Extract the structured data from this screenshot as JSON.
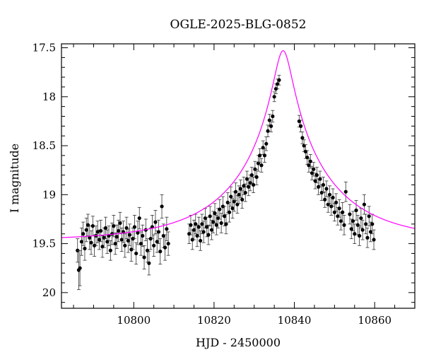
{
  "chart_data": {
    "type": "scatter",
    "title": "OGLE-2025-BLG-0852",
    "xlabel": "HJD - 2450000",
    "ylabel": "I magnitude",
    "xlim": [
      10782,
      10870
    ],
    "ylim": [
      20.16,
      17.46
    ],
    "y_inverted": true,
    "x_ticks": [
      10800,
      10820,
      10840,
      10860
    ],
    "x_tick_labels": [
      "10800",
      "10820",
      "10840",
      "10860"
    ],
    "y_ticks": [
      17.5,
      18,
      18.5,
      19,
      19.5,
      20
    ],
    "y_tick_labels": [
      "17.5",
      "18",
      "18.5",
      "19",
      "19.5",
      "20"
    ],
    "model": {
      "color": "#ff00ff",
      "shape": "paczynski",
      "t0": 10837.2,
      "tE": 24,
      "u0": 0.09,
      "baseline_mag": 19.47,
      "peak_mag": 17.53
    },
    "series": [
      {
        "marker": "filled-circle",
        "color": "#000000",
        "points": [
          [
            10786.0,
            19.57,
            0.12
          ],
          [
            10786.3,
            19.77,
            0.2
          ],
          [
            10786.6,
            19.75,
            0.18
          ],
          [
            10787.0,
            19.48,
            0.14
          ],
          [
            10787.4,
            19.4,
            0.12
          ],
          [
            10787.8,
            19.55,
            0.12
          ],
          [
            10788.2,
            19.36,
            0.12
          ],
          [
            10788.6,
            19.31,
            0.11
          ],
          [
            10789.0,
            19.44,
            0.12
          ],
          [
            10789.4,
            19.49,
            0.12
          ],
          [
            10789.8,
            19.32,
            0.1
          ],
          [
            10790.2,
            19.52,
            0.11
          ],
          [
            10790.6,
            19.42,
            0.1
          ],
          [
            10791.0,
            19.38,
            0.11
          ],
          [
            10791.4,
            19.46,
            0.1
          ],
          [
            10791.8,
            19.37,
            0.11
          ],
          [
            10792.2,
            19.53,
            0.11
          ],
          [
            10792.6,
            19.44,
            0.1
          ],
          [
            10793.0,
            19.34,
            0.11
          ],
          [
            10793.4,
            19.48,
            0.12
          ],
          [
            10793.8,
            19.42,
            0.1
          ],
          [
            10794.2,
            19.57,
            0.1
          ],
          [
            10794.6,
            19.4,
            0.11
          ],
          [
            10795.0,
            19.32,
            0.11
          ],
          [
            10795.4,
            19.5,
            0.11
          ],
          [
            10795.8,
            19.43,
            0.12
          ],
          [
            10796.2,
            19.37,
            0.11
          ],
          [
            10796.6,
            19.29,
            0.11
          ],
          [
            10797.0,
            19.46,
            0.12
          ],
          [
            10797.4,
            19.38,
            0.11
          ],
          [
            10797.8,
            19.52,
            0.12
          ],
          [
            10798.2,
            19.34,
            0.11
          ],
          [
            10798.6,
            19.47,
            0.12
          ],
          [
            10799.0,
            19.41,
            0.11
          ],
          [
            10799.4,
            19.56,
            0.12
          ],
          [
            10799.8,
            19.45,
            0.11
          ],
          [
            10800.2,
            19.33,
            0.12
          ],
          [
            10800.6,
            19.6,
            0.11
          ],
          [
            10801.0,
            19.39,
            0.12
          ],
          [
            10801.4,
            19.24,
            0.11
          ],
          [
            10801.8,
            19.5,
            0.12
          ],
          [
            10802.2,
            19.42,
            0.11
          ],
          [
            10802.6,
            19.64,
            0.12
          ],
          [
            10803.0,
            19.36,
            0.11
          ],
          [
            10803.4,
            19.57,
            0.12
          ],
          [
            10803.8,
            19.7,
            0.12
          ],
          [
            10804.2,
            19.45,
            0.11
          ],
          [
            10804.6,
            19.33,
            0.12
          ],
          [
            10805.0,
            19.52,
            0.11
          ],
          [
            10805.4,
            19.28,
            0.12
          ],
          [
            10805.8,
            19.48,
            0.11
          ],
          [
            10806.2,
            19.38,
            0.12
          ],
          [
            10806.6,
            19.58,
            0.13
          ],
          [
            10807.0,
            19.12,
            0.12
          ],
          [
            10807.4,
            19.42,
            0.12
          ],
          [
            10807.8,
            19.54,
            0.13
          ],
          [
            10808.2,
            19.35,
            0.12
          ],
          [
            10808.6,
            19.5,
            0.12
          ],
          [
            10813.8,
            19.4,
            0.1
          ],
          [
            10814.2,
            19.31,
            0.1
          ],
          [
            10814.6,
            19.46,
            0.1
          ],
          [
            10815.0,
            19.36,
            0.1
          ],
          [
            10815.4,
            19.3,
            0.1
          ],
          [
            10815.8,
            19.42,
            0.11
          ],
          [
            10816.2,
            19.33,
            0.1
          ],
          [
            10816.6,
            19.47,
            0.1
          ],
          [
            10817.0,
            19.3,
            0.1
          ],
          [
            10817.4,
            19.38,
            0.11
          ],
          [
            10817.8,
            19.24,
            0.1
          ],
          [
            10818.2,
            19.33,
            0.1
          ],
          [
            10818.6,
            19.41,
            0.1
          ],
          [
            10819.0,
            19.22,
            0.1
          ],
          [
            10819.4,
            19.36,
            0.1
          ],
          [
            10819.8,
            19.28,
            0.11
          ],
          [
            10820.2,
            19.19,
            0.1
          ],
          [
            10820.6,
            19.31,
            0.1
          ],
          [
            10821.0,
            19.24,
            0.1
          ],
          [
            10821.4,
            19.15,
            0.1
          ],
          [
            10821.8,
            19.29,
            0.1
          ],
          [
            10822.2,
            19.12,
            0.1
          ],
          [
            10822.6,
            19.22,
            0.1
          ],
          [
            10823.0,
            19.3,
            0.1
          ],
          [
            10823.4,
            19.08,
            0.1
          ],
          [
            10823.8,
            19.18,
            0.1
          ],
          [
            10824.2,
            19.02,
            0.1
          ],
          [
            10824.6,
            19.14,
            0.1
          ],
          [
            10825.0,
            19.07,
            0.1
          ],
          [
            10825.4,
            18.97,
            0.09
          ],
          [
            10825.8,
            19.1,
            0.09
          ],
          [
            10826.2,
            19.0,
            0.09
          ],
          [
            10826.6,
            18.94,
            0.09
          ],
          [
            10827.0,
            19.05,
            0.09
          ],
          [
            10827.4,
            18.91,
            0.09
          ],
          [
            10827.8,
            18.98,
            0.09
          ],
          [
            10828.2,
            18.84,
            0.08
          ],
          [
            10828.6,
            18.92,
            0.09
          ],
          [
            10829.0,
            18.88,
            0.08
          ],
          [
            10829.4,
            18.8,
            0.08
          ],
          [
            10829.8,
            18.9,
            0.08
          ],
          [
            10830.2,
            18.74,
            0.08
          ],
          [
            10830.6,
            18.82,
            0.08
          ],
          [
            10831.0,
            18.68,
            0.08
          ],
          [
            10831.4,
            18.6,
            0.07
          ],
          [
            10831.8,
            18.7,
            0.07
          ],
          [
            10832.2,
            18.52,
            0.07
          ],
          [
            10832.6,
            18.6,
            0.07
          ],
          [
            10833.0,
            18.48,
            0.07
          ],
          [
            10833.4,
            18.35,
            0.06
          ],
          [
            10833.8,
            18.24,
            0.06
          ],
          [
            10834.2,
            18.3,
            0.06
          ],
          [
            10834.6,
            18.2,
            0.06
          ],
          [
            10835.0,
            18.0,
            0.05
          ],
          [
            10835.4,
            17.92,
            0.05
          ],
          [
            10835.8,
            17.87,
            0.05
          ],
          [
            10836.2,
            17.83,
            0.05
          ],
          [
            10841.2,
            18.25,
            0.06
          ],
          [
            10841.6,
            18.3,
            0.06
          ],
          [
            10842.0,
            18.42,
            0.06
          ],
          [
            10842.4,
            18.5,
            0.06
          ],
          [
            10842.8,
            18.56,
            0.07
          ],
          [
            10843.2,
            18.62,
            0.07
          ],
          [
            10843.6,
            18.7,
            0.07
          ],
          [
            10844.0,
            18.66,
            0.07
          ],
          [
            10844.4,
            18.78,
            0.07
          ],
          [
            10844.8,
            18.74,
            0.07
          ],
          [
            10845.2,
            18.86,
            0.08
          ],
          [
            10845.6,
            18.8,
            0.08
          ],
          [
            10846.0,
            18.92,
            0.08
          ],
          [
            10846.4,
            18.84,
            0.08
          ],
          [
            10846.8,
            18.98,
            0.08
          ],
          [
            10847.2,
            18.9,
            0.08
          ],
          [
            10847.6,
            19.05,
            0.08
          ],
          [
            10848.0,
            18.94,
            0.08
          ],
          [
            10848.4,
            19.1,
            0.08
          ],
          [
            10848.8,
            19.0,
            0.09
          ],
          [
            10849.2,
            19.12,
            0.09
          ],
          [
            10849.6,
            19.03,
            0.09
          ],
          [
            10850.0,
            19.18,
            0.09
          ],
          [
            10850.4,
            19.08,
            0.09
          ],
          [
            10850.8,
            19.22,
            0.09
          ],
          [
            10851.2,
            19.14,
            0.09
          ],
          [
            10851.6,
            19.27,
            0.09
          ],
          [
            10852.0,
            19.18,
            0.1
          ],
          [
            10852.4,
            19.31,
            0.1
          ],
          [
            10852.8,
            18.97,
            0.1
          ],
          [
            10853.8,
            19.2,
            0.1
          ],
          [
            10854.2,
            19.35,
            0.1
          ],
          [
            10854.6,
            19.27,
            0.1
          ],
          [
            10855.0,
            19.4,
            0.1
          ],
          [
            10855.4,
            19.16,
            0.1
          ],
          [
            10855.8,
            19.31,
            0.1
          ],
          [
            10856.2,
            19.42,
            0.1
          ],
          [
            10856.6,
            19.24,
            0.1
          ],
          [
            10857.0,
            19.36,
            0.1
          ],
          [
            10857.4,
            19.1,
            0.1
          ],
          [
            10857.8,
            19.3,
            0.1
          ],
          [
            10858.2,
            19.44,
            0.1
          ],
          [
            10858.6,
            19.22,
            0.1
          ],
          [
            10859.0,
            19.38,
            0.1
          ],
          [
            10859.4,
            19.3,
            0.1
          ],
          [
            10859.8,
            19.46,
            0.1
          ]
        ]
      }
    ]
  }
}
